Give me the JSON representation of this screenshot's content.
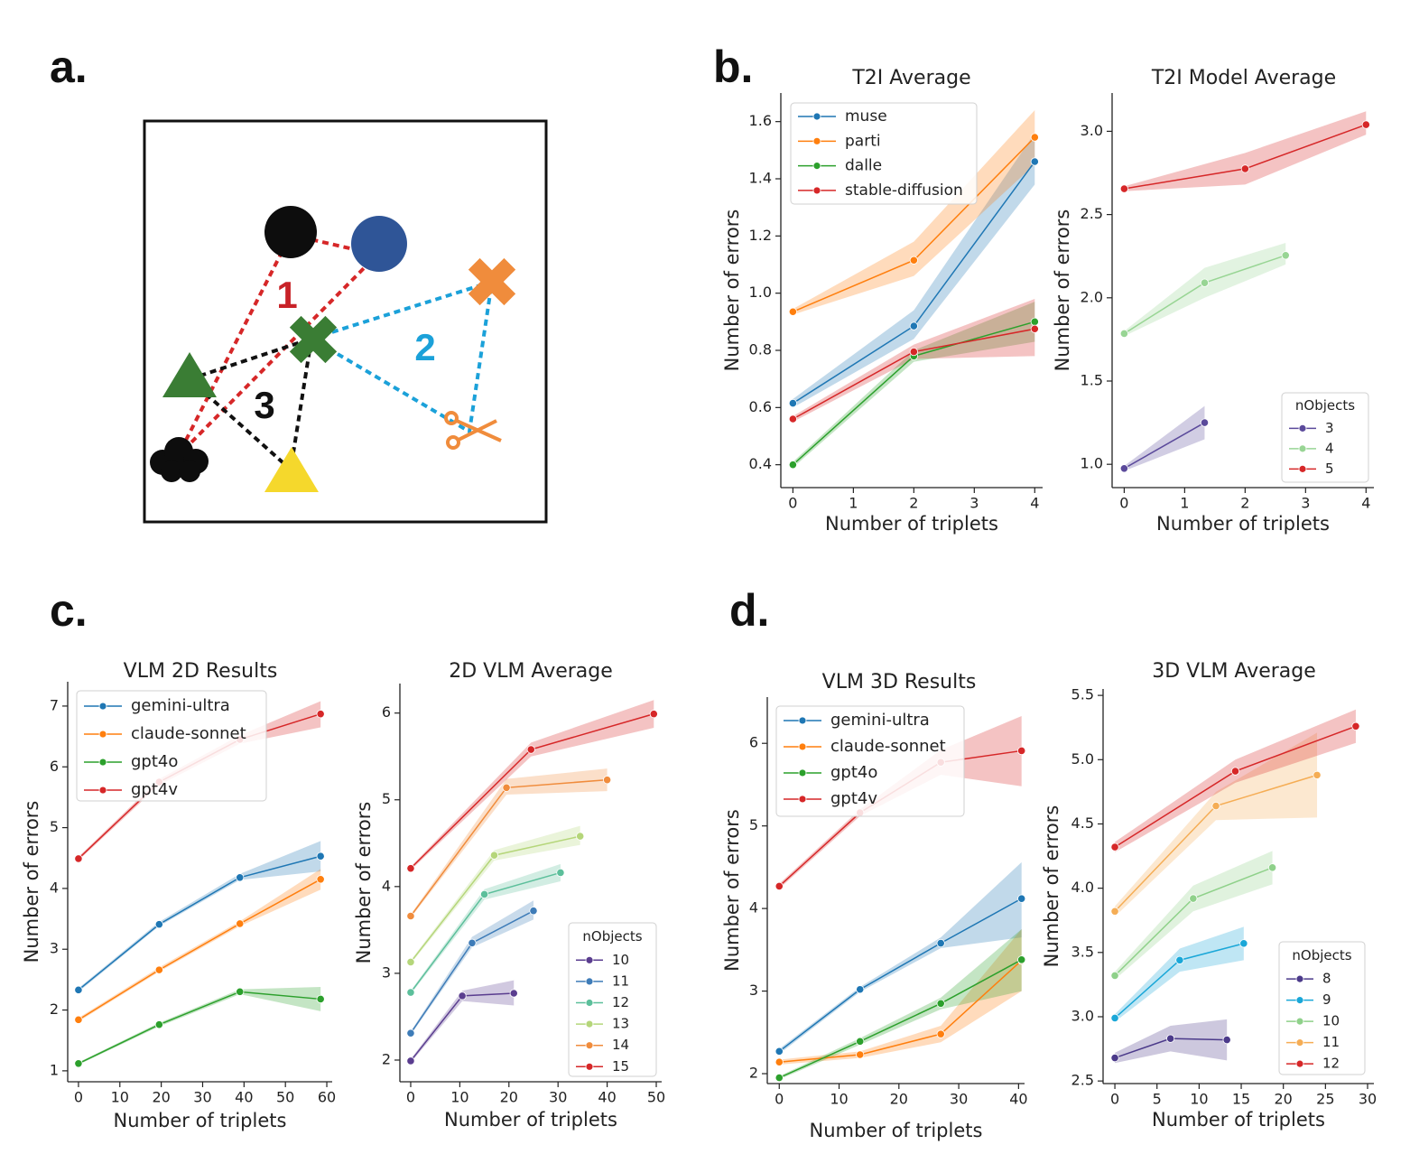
{
  "panel_labels": [
    "a.",
    "b.",
    "c.",
    "d."
  ],
  "diagram": {
    "labels": [
      "1",
      "2",
      "3"
    ]
  },
  "chart_data": [
    {
      "type": "line",
      "title": "T2I Average",
      "xlabel": "Number of triplets",
      "ylabel": "Number of errors",
      "xlim": [
        -0.2,
        4.13
      ],
      "ylim": [
        0.32,
        1.7
      ],
      "xticks": [
        0,
        1,
        2,
        3,
        4
      ],
      "yticks": [
        0.4,
        0.6,
        0.8,
        {
          "value": 1,
          "label": "1.0"
        },
        1.2,
        1.4,
        1.6
      ],
      "legend": "upper left",
      "series": [
        {
          "name": "muse",
          "color": "#1f77b4",
          "x": [
            0,
            2,
            4
          ],
          "values": [
            0.615,
            0.885,
            1.46
          ],
          "lower": [
            0.6,
            0.84,
            1.38
          ],
          "upper": [
            0.63,
            0.94,
            1.56
          ]
        },
        {
          "name": "parti",
          "color": "#ff7f0e",
          "x": [
            0,
            2,
            4
          ],
          "values": [
            0.935,
            1.115,
            1.545
          ],
          "lower": [
            0.925,
            1.06,
            1.45
          ],
          "upper": [
            0.945,
            1.18,
            1.64
          ]
        },
        {
          "name": "dalle",
          "color": "#2ca02c",
          "x": [
            0,
            2,
            4
          ],
          "values": [
            0.4,
            0.78,
            0.9
          ],
          "lower": [
            0.39,
            0.76,
            0.83
          ],
          "upper": [
            0.41,
            0.8,
            0.97
          ]
        },
        {
          "name": "stable-diffusion",
          "color": "#d62728",
          "x": [
            0,
            2,
            4
          ],
          "values": [
            0.56,
            0.795,
            0.875
          ],
          "lower": [
            0.55,
            0.77,
            0.78
          ],
          "upper": [
            0.57,
            0.82,
            0.98
          ]
        }
      ]
    },
    {
      "type": "line",
      "title": "T2I Model Average",
      "xlabel": "Number of triplets",
      "ylabel": "Number of errors",
      "xlim": [
        -0.2,
        4.13
      ],
      "ylim": [
        0.86,
        3.23
      ],
      "xticks": [
        0,
        1,
        2,
        3,
        4
      ],
      "yticks": [
        {
          "value": 1,
          "label": "1.0"
        },
        1.5,
        {
          "value": 2,
          "label": "2.0"
        },
        2.5,
        {
          "value": 3,
          "label": "3.0"
        }
      ],
      "legend": "lower right",
      "legend_title": "nObjects",
      "series": [
        {
          "name": "3",
          "color": "#5b4a9b",
          "x": [
            0,
            1.33
          ],
          "values": [
            0.975,
            1.25
          ],
          "lower": [
            0.96,
            1.15
          ],
          "upper": [
            0.99,
            1.35
          ]
        },
        {
          "name": "4",
          "color": "#98d594",
          "x": [
            0,
            1.33,
            2.67
          ],
          "values": [
            1.785,
            2.09,
            2.255
          ],
          "lower": [
            1.77,
            2.0,
            2.2
          ],
          "upper": [
            1.8,
            2.18,
            2.33
          ]
        },
        {
          "name": "5",
          "color": "#d62728",
          "x": [
            0,
            2,
            4
          ],
          "values": [
            2.655,
            2.775,
            3.04
          ],
          "lower": [
            2.64,
            2.68,
            2.98
          ],
          "upper": [
            2.67,
            2.87,
            3.12
          ]
        }
      ]
    },
    {
      "type": "line",
      "title": "VLM 2D Results",
      "xlabel": "Number of triplets",
      "ylabel": "Number of errors",
      "xlim": [
        -2.6,
        61.3
      ],
      "ylim": [
        0.82,
        7.4
      ],
      "xticks": [
        0,
        10,
        20,
        30,
        40,
        50,
        60
      ],
      "yticks": [
        1,
        2,
        3,
        4,
        5,
        6,
        7
      ],
      "legend": "upper left",
      "series": [
        {
          "name": "gemini-ultra",
          "color": "#1f77b4",
          "x": [
            0,
            19.5,
            39,
            58.5
          ],
          "values": [
            2.33,
            3.41,
            4.18,
            4.53
          ],
          "lower": [
            2.3,
            3.38,
            4.14,
            4.28
          ],
          "upper": [
            2.36,
            3.45,
            4.24,
            4.78
          ]
        },
        {
          "name": "claude-sonnet",
          "color": "#ff7f0e",
          "x": [
            0,
            19.5,
            39,
            58.5
          ],
          "values": [
            1.84,
            2.66,
            3.42,
            4.15
          ],
          "lower": [
            1.81,
            2.63,
            3.38,
            3.98
          ],
          "upper": [
            1.87,
            2.7,
            3.46,
            4.32
          ]
        },
        {
          "name": "gpt4o",
          "color": "#2ca02c",
          "x": [
            0,
            19.5,
            39,
            58.5
          ],
          "values": [
            1.12,
            1.76,
            2.3,
            2.18
          ],
          "lower": [
            1.1,
            1.73,
            2.26,
            1.98
          ],
          "upper": [
            1.14,
            1.79,
            2.34,
            2.38
          ]
        },
        {
          "name": "gpt4v",
          "color": "#d62728",
          "x": [
            0,
            19.5,
            39,
            58.5
          ],
          "values": [
            4.49,
            5.75,
            6.45,
            6.87
          ],
          "lower": [
            4.46,
            5.7,
            6.38,
            6.65
          ],
          "upper": [
            4.52,
            5.8,
            6.52,
            7.08
          ]
        }
      ]
    },
    {
      "type": "line",
      "title": "2D VLM Average",
      "xlabel": "Number of triplets",
      "ylabel": "Number of errors",
      "xlim": [
        -2.2,
        51.1
      ],
      "ylim": [
        1.75,
        6.34
      ],
      "xticks": [
        0,
        10,
        20,
        30,
        40,
        50
      ],
      "yticks": [
        2,
        3,
        4,
        5,
        6
      ],
      "legend": "lower right",
      "legend_title": "nObjects",
      "series": [
        {
          "name": "10",
          "color": "#5a3d8f",
          "x": [
            0,
            10.5,
            21
          ],
          "values": [
            1.99,
            2.74,
            2.77
          ],
          "lower": [
            1.97,
            2.68,
            2.63
          ],
          "upper": [
            2.01,
            2.8,
            2.92
          ]
        },
        {
          "name": "11",
          "color": "#3e7cb8",
          "x": [
            0,
            12.5,
            25
          ],
          "values": [
            2.31,
            3.35,
            3.72
          ],
          "lower": [
            2.29,
            3.3,
            3.62
          ],
          "upper": [
            2.33,
            3.42,
            3.84
          ]
        },
        {
          "name": "12",
          "color": "#5cbf9b",
          "x": [
            0,
            15,
            30.5
          ],
          "values": [
            2.78,
            3.91,
            4.16
          ],
          "lower": [
            2.76,
            3.85,
            4.06
          ],
          "upper": [
            2.8,
            3.97,
            4.26
          ]
        },
        {
          "name": "13",
          "color": "#b5d67a",
          "x": [
            0,
            17,
            34.5
          ],
          "values": [
            3.13,
            4.36,
            4.58
          ],
          "lower": [
            3.11,
            4.3,
            4.48
          ],
          "upper": [
            3.15,
            4.42,
            4.7
          ]
        },
        {
          "name": "14",
          "color": "#f08c3c",
          "x": [
            0,
            19.5,
            40
          ],
          "values": [
            3.66,
            5.14,
            5.23
          ],
          "lower": [
            3.64,
            5.06,
            5.1
          ],
          "upper": [
            3.68,
            5.24,
            5.36
          ]
        },
        {
          "name": "15",
          "color": "#d62728",
          "x": [
            0,
            24.5,
            49.5
          ],
          "values": [
            4.21,
            5.58,
            5.99
          ],
          "lower": [
            4.19,
            5.5,
            5.83
          ],
          "upper": [
            4.23,
            5.66,
            6.15
          ]
        }
      ]
    },
    {
      "type": "line",
      "title": "VLM 3D Results",
      "xlabel": "Number of triplets",
      "ylabel": "Number of errors",
      "xlim": [
        -2,
        41
      ],
      "ylim": [
        1.88,
        6.56
      ],
      "xticks": [
        0,
        10,
        20,
        30,
        40
      ],
      "yticks": [
        2,
        3,
        4,
        5,
        6
      ],
      "legend": "upper left",
      "series": [
        {
          "name": "gemini-ultra",
          "color": "#1f77b4",
          "x": [
            0,
            13.5,
            27,
            40.5
          ],
          "values": [
            2.27,
            3.02,
            3.58,
            4.12
          ],
          "lower": [
            2.24,
            2.99,
            3.52,
            3.65
          ],
          "upper": [
            2.3,
            3.05,
            3.65,
            4.56
          ]
        },
        {
          "name": "claude-sonnet",
          "color": "#ff7f0e",
          "x": [
            0,
            13.5,
            27,
            40.5
          ],
          "values": [
            2.14,
            2.23,
            2.48,
            3.37
          ],
          "lower": [
            2.11,
            2.19,
            2.38,
            3.0
          ],
          "upper": [
            2.17,
            2.27,
            2.58,
            3.75
          ]
        },
        {
          "name": "gpt4o",
          "color": "#2ca02c",
          "x": [
            0,
            13.5,
            27,
            40.5
          ],
          "values": [
            1.95,
            2.39,
            2.85,
            3.38
          ],
          "lower": [
            1.93,
            2.35,
            2.78,
            3.0
          ],
          "upper": [
            1.97,
            2.43,
            2.92,
            3.75
          ]
        },
        {
          "name": "gpt4v",
          "color": "#d62728",
          "x": [
            0,
            13.5,
            27,
            40.5
          ],
          "values": [
            4.27,
            5.16,
            5.77,
            5.91
          ],
          "lower": [
            4.24,
            5.12,
            5.62,
            5.48
          ],
          "upper": [
            4.3,
            5.2,
            5.92,
            6.33
          ]
        }
      ]
    },
    {
      "type": "line",
      "title": "3D VLM Average",
      "xlabel": "Number of triplets",
      "ylabel": "Number of errors",
      "xlim": [
        -1.4,
        30.75
      ],
      "ylim": [
        2.48,
        5.55
      ],
      "xticks": [
        0,
        5,
        10,
        15,
        20,
        25,
        30
      ],
      "yticks": [
        2.5,
        {
          "value": 3,
          "label": "3.0"
        },
        3.5,
        {
          "value": 4,
          "label": "4.0"
        },
        4.5,
        {
          "value": 5,
          "label": "5.0"
        },
        5.5
      ],
      "legend": "lower right",
      "legend_title": "nObjects",
      "series": [
        {
          "name": "8",
          "color": "#4b3a8a",
          "x": [
            0,
            6.6,
            13.3
          ],
          "values": [
            2.68,
            2.83,
            2.82
          ],
          "lower": [
            2.64,
            2.73,
            2.66
          ],
          "upper": [
            2.72,
            2.93,
            2.98
          ]
        },
        {
          "name": "9",
          "color": "#1aa7d8",
          "x": [
            0,
            7.7,
            15.3
          ],
          "values": [
            2.99,
            3.44,
            3.57
          ],
          "lower": [
            2.96,
            3.35,
            3.44
          ],
          "upper": [
            3.02,
            3.53,
            3.7
          ]
        },
        {
          "name": "10",
          "color": "#8fd18a",
          "x": [
            0,
            9.3,
            18.7
          ],
          "values": [
            3.32,
            3.92,
            4.16
          ],
          "lower": [
            3.29,
            3.82,
            4.03
          ],
          "upper": [
            3.35,
            4.02,
            4.29
          ]
        },
        {
          "name": "11",
          "color": "#f5ad55",
          "x": [
            0,
            12,
            24
          ],
          "values": [
            3.82,
            4.64,
            4.88
          ],
          "lower": [
            3.78,
            4.53,
            4.55
          ],
          "upper": [
            3.86,
            4.75,
            5.21
          ]
        },
        {
          "name": "12",
          "color": "#d62728",
          "x": [
            0,
            14.3,
            28.6
          ],
          "values": [
            4.32,
            4.91,
            5.26
          ],
          "lower": [
            4.28,
            4.82,
            5.13
          ],
          "upper": [
            4.36,
            5.0,
            5.39
          ]
        }
      ]
    }
  ]
}
